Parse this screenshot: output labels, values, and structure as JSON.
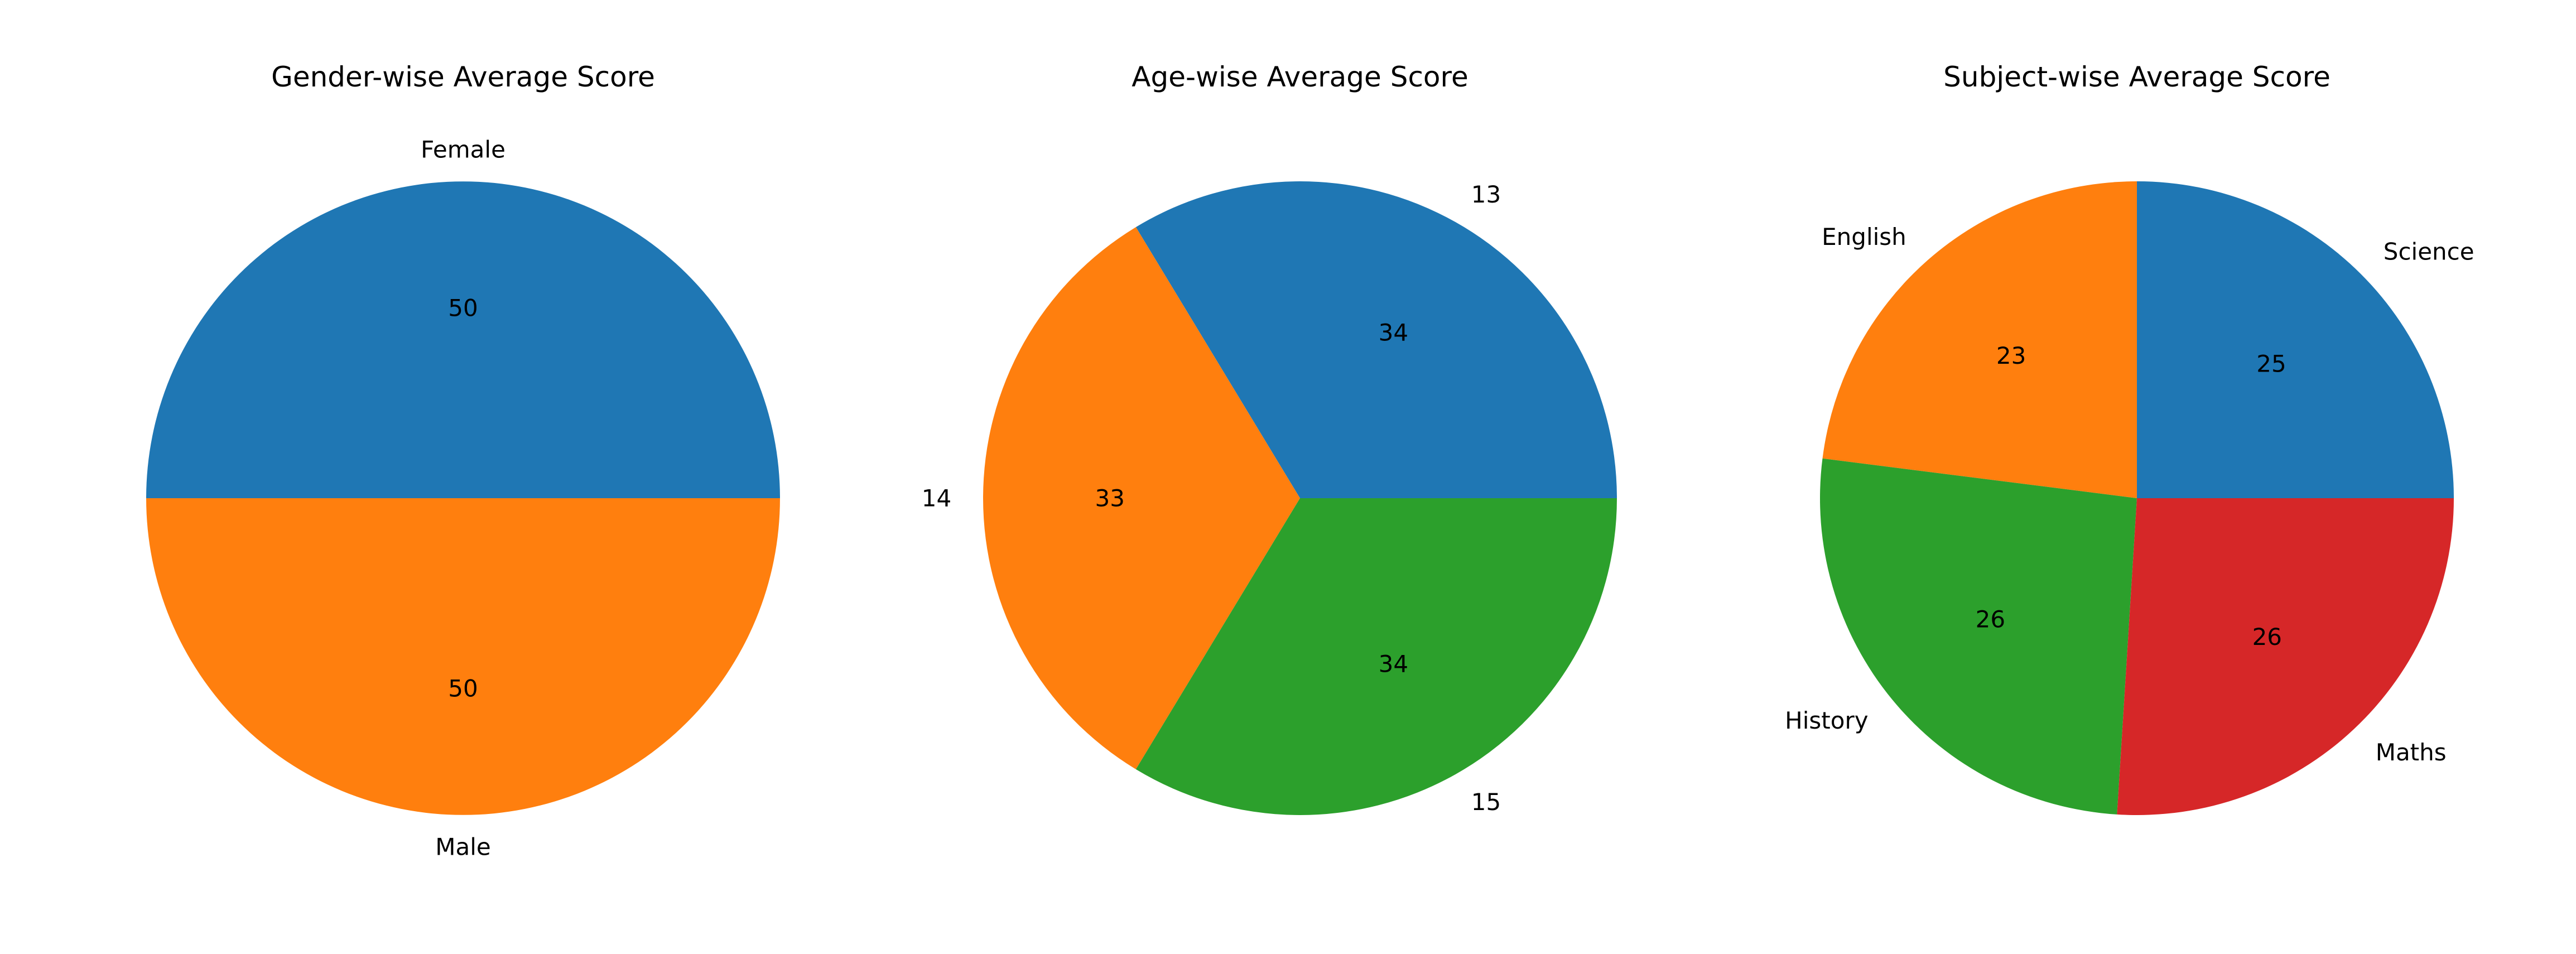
{
  "chart_data": [
    {
      "type": "pie",
      "title": "Gender-wise Average Score",
      "labels": [
        "Female",
        "Male"
      ],
      "values": [
        50,
        50
      ],
      "slice_value_labels": [
        "50",
        "50"
      ],
      "colors": [
        "#1f77b4",
        "#ff7f0e"
      ],
      "start_angle_deg": 0,
      "direction": "counterclockwise",
      "legend": "none"
    },
    {
      "type": "pie",
      "title": "Age-wise Average Score",
      "labels": [
        "13",
        "14",
        "15"
      ],
      "values": [
        34,
        33,
        34
      ],
      "slice_value_labels": [
        "34",
        "33",
        "34"
      ],
      "colors": [
        "#1f77b4",
        "#ff7f0e",
        "#2ca02c"
      ],
      "start_angle_deg": 0,
      "direction": "counterclockwise",
      "legend": "none"
    },
    {
      "type": "pie",
      "title": "Subject-wise Average Score",
      "labels": [
        "Science",
        "English",
        "History",
        "Maths"
      ],
      "values": [
        25,
        23,
        26,
        26
      ],
      "slice_value_labels": [
        "25",
        "23",
        "26",
        "26"
      ],
      "colors": [
        "#1f77b4",
        "#ff7f0e",
        "#2ca02c",
        "#d62728"
      ],
      "start_angle_deg": 0,
      "direction": "counterclockwise",
      "legend": "none"
    }
  ]
}
